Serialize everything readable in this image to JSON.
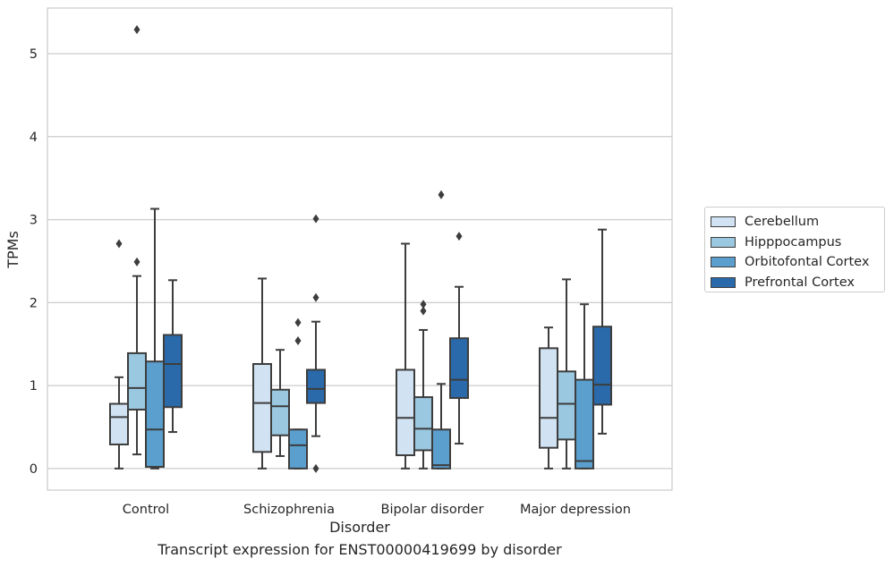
{
  "chart_data": {
    "type": "box",
    "title": "",
    "caption": "Transcript expression for ENST00000419699 by disorder",
    "xlabel": "Disorder",
    "ylabel": "TPMs",
    "ylim": [
      -0.26,
      5.55
    ],
    "yticks": [
      0,
      1,
      2,
      3,
      4,
      5
    ],
    "grid": true,
    "legend_position": "right",
    "categories": [
      "Control",
      "Schizophrenia",
      "Bipolar disorder",
      "Major depression"
    ],
    "series": [
      {
        "name": "Cerebellum",
        "color": "#d1e3f3",
        "boxes": [
          {
            "whisker_low": 0.0,
            "q1": 0.29,
            "median": 0.62,
            "q3": 0.78,
            "whisker_high": 1.1,
            "outliers": [
              2.71
            ]
          },
          {
            "whisker_low": 0.0,
            "q1": 0.2,
            "median": 0.79,
            "q3": 1.26,
            "whisker_high": 2.29,
            "outliers": []
          },
          {
            "whisker_low": 0.0,
            "q1": 0.16,
            "median": 0.61,
            "q3": 1.19,
            "whisker_high": 2.71,
            "outliers": []
          },
          {
            "whisker_low": 0.0,
            "q1": 0.25,
            "median": 0.61,
            "q3": 1.45,
            "whisker_high": 1.7,
            "outliers": []
          }
        ]
      },
      {
        "name": "Hipppocampus",
        "color": "#9ac8e0",
        "boxes": [
          {
            "whisker_low": 0.17,
            "q1": 0.71,
            "median": 0.97,
            "q3": 1.39,
            "whisker_high": 2.32,
            "outliers": [
              2.49,
              5.29
            ]
          },
          {
            "whisker_low": 0.15,
            "q1": 0.4,
            "median": 0.75,
            "q3": 0.95,
            "whisker_high": 1.43,
            "outliers": []
          },
          {
            "whisker_low": 0.0,
            "q1": 0.22,
            "median": 0.48,
            "q3": 0.86,
            "whisker_high": 1.67,
            "outliers": [
              1.9,
              1.98
            ]
          },
          {
            "whisker_low": 0.0,
            "q1": 0.35,
            "median": 0.78,
            "q3": 1.17,
            "whisker_high": 2.28,
            "outliers": []
          }
        ]
      },
      {
        "name": "Orbitofontal Cortex",
        "color": "#5a9fcd",
        "boxes": [
          {
            "whisker_low": 0.0,
            "q1": 0.02,
            "median": 0.47,
            "q3": 1.29,
            "whisker_high": 3.13,
            "outliers": []
          },
          {
            "whisker_low": 0.0,
            "q1": 0.0,
            "median": 0.28,
            "q3": 0.47,
            "whisker_high": 0.47,
            "outliers": [
              1.54,
              1.76
            ]
          },
          {
            "whisker_low": 0.0,
            "q1": 0.0,
            "median": 0.04,
            "q3": 0.47,
            "whisker_high": 1.02,
            "outliers": [
              3.3
            ]
          },
          {
            "whisker_low": 0.0,
            "q1": 0.0,
            "median": 0.09,
            "q3": 1.07,
            "whisker_high": 1.98,
            "outliers": []
          }
        ]
      },
      {
        "name": "Prefrontal Cortex",
        "color": "#2a6aab",
        "boxes": [
          {
            "whisker_low": 0.44,
            "q1": 0.74,
            "median": 1.26,
            "q3": 1.61,
            "whisker_high": 2.27,
            "outliers": []
          },
          {
            "whisker_low": 0.39,
            "q1": 0.79,
            "median": 0.96,
            "q3": 1.19,
            "whisker_high": 1.77,
            "outliers": [
              0.0,
              2.06,
              3.01
            ]
          },
          {
            "whisker_low": 0.3,
            "q1": 0.85,
            "median": 1.07,
            "q3": 1.57,
            "whisker_high": 2.19,
            "outliers": [
              2.8
            ]
          },
          {
            "whisker_low": 0.42,
            "q1": 0.77,
            "median": 1.01,
            "q3": 1.71,
            "whisker_high": 2.88,
            "outliers": []
          }
        ]
      }
    ]
  }
}
